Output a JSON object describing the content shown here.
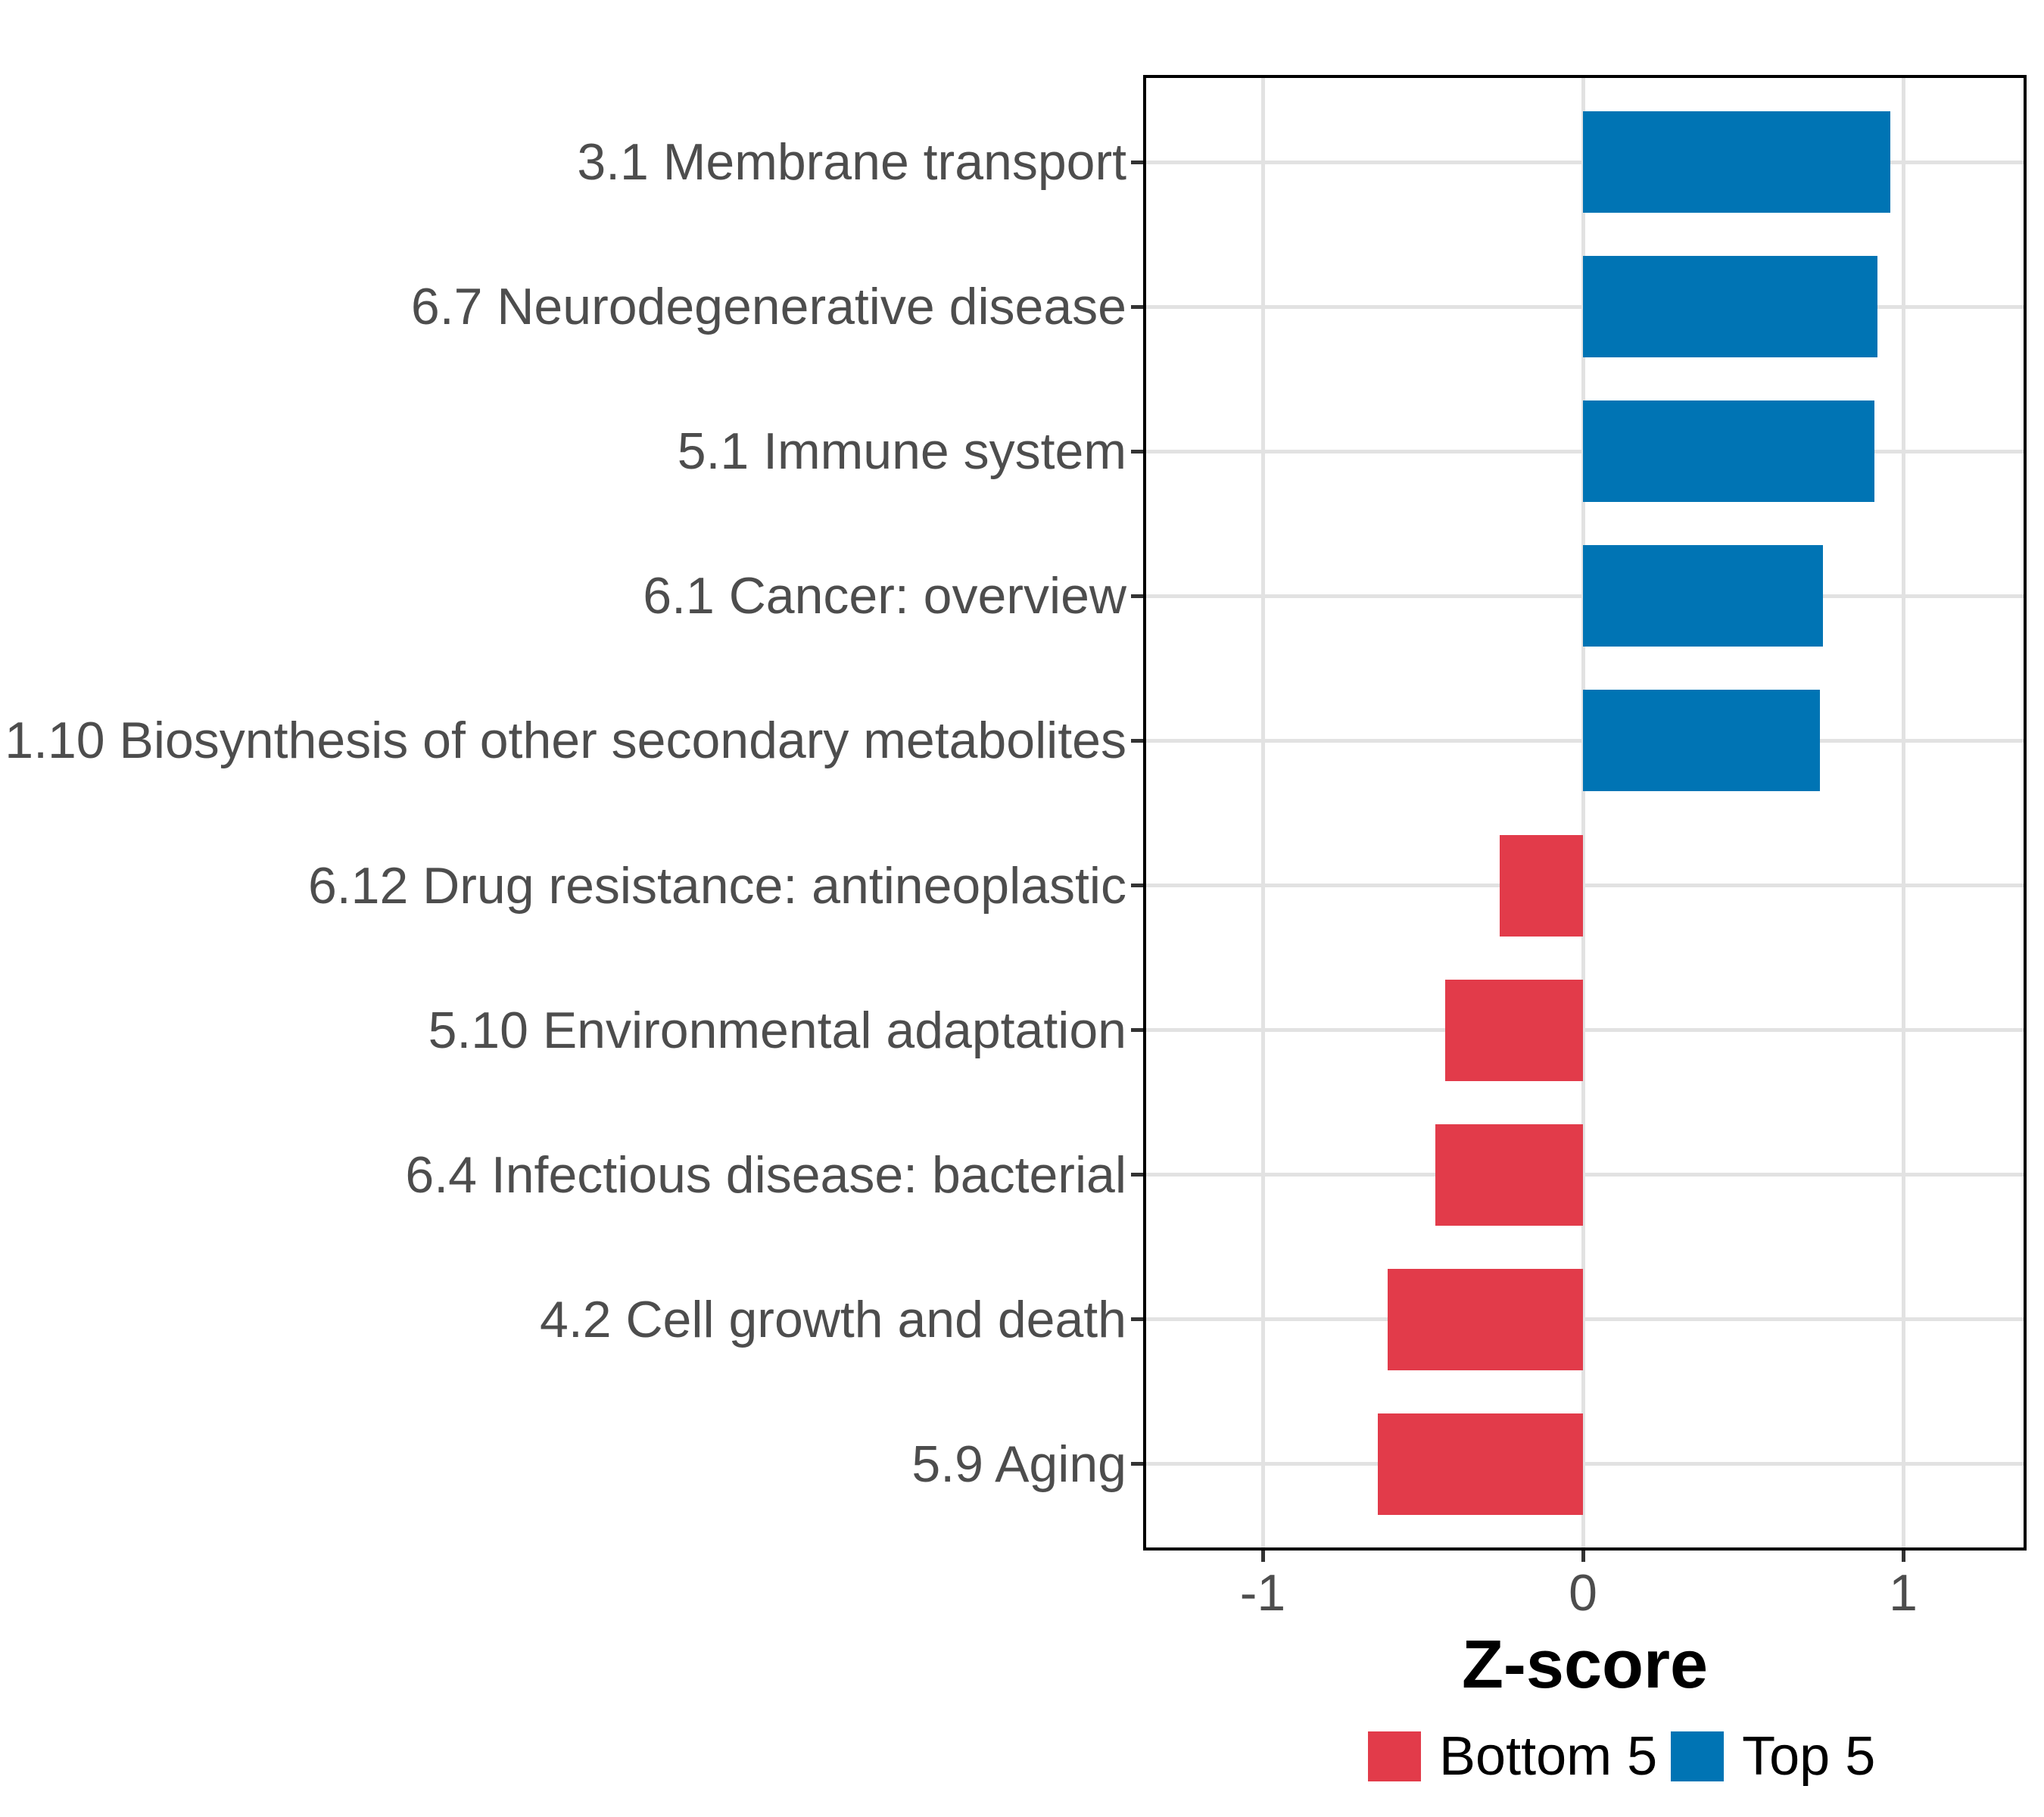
{
  "chart_data": {
    "type": "bar",
    "orientation": "horizontal",
    "title": "",
    "xlabel": "Z-score",
    "ylabel": "",
    "xlim": [
      -1.37,
      1.39
    ],
    "xticks": [
      {
        "value": -1,
        "label": "-1"
      },
      {
        "value": 0,
        "label": "0"
      },
      {
        "value": 1,
        "label": "1"
      }
    ],
    "grid": "major-only",
    "categories": [
      "3.1 Membrane transport",
      "6.7 Neurodegenerative disease",
      "5.1 Immune system",
      "6.1 Cancer: overview",
      "1.10 Biosynthesis of other secondary metabolites",
      "6.12 Drug resistance: antineoplastic",
      "5.10 Environmental adaptation",
      "6.4 Infectious disease: bacterial",
      "4.2 Cell growth and death",
      "5.9 Aging"
    ],
    "values": [
      0.96,
      0.92,
      0.91,
      0.75,
      0.74,
      -0.26,
      -0.43,
      -0.46,
      -0.61,
      -0.64
    ],
    "groups": [
      "Top 5",
      "Top 5",
      "Top 5",
      "Top 5",
      "Top 5",
      "Bottom 5",
      "Bottom 5",
      "Bottom 5",
      "Bottom 5",
      "Bottom 5"
    ],
    "legend_position": "bottom-right"
  },
  "axis": {
    "x_title": "Z-score"
  },
  "legend": {
    "items": [
      {
        "label": "Bottom 5",
        "color": "#E23B4A"
      },
      {
        "label": "Top 5",
        "color": "#0074B4"
      }
    ]
  },
  "colors": {
    "top5_blue": "#0074B4",
    "bottom5_red": "#E23B4A",
    "gridline": "#E2E2E2",
    "axis_text": "#4D4D4D",
    "panel_border": "#000000",
    "tick_mark": "#333333",
    "background": "#FFFFFF"
  }
}
